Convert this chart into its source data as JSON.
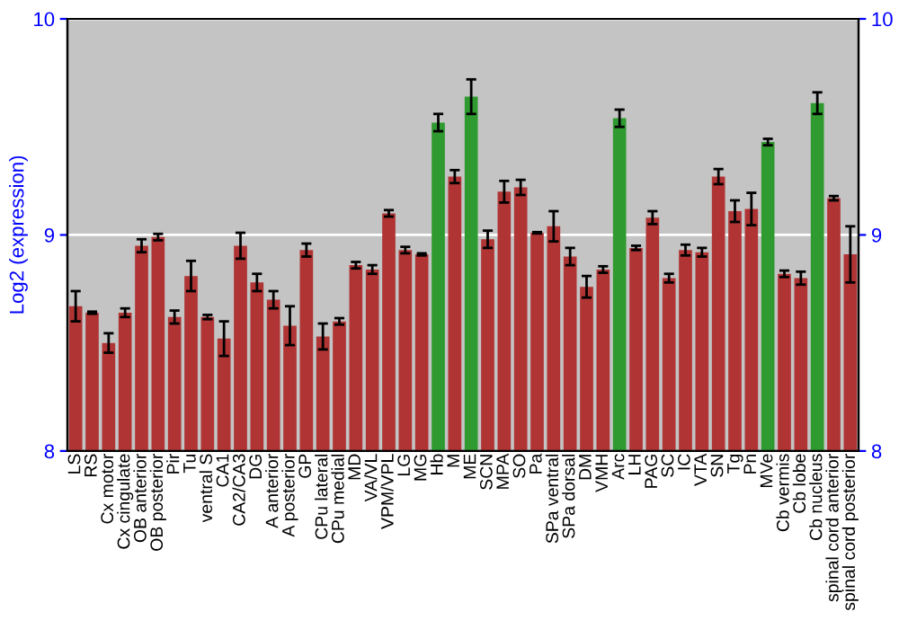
{
  "chart_data": {
    "type": "bar",
    "ylabel": "Log2 (expression)",
    "categories": [
      "LS",
      "RS",
      "Cx motor",
      "Cx cingulate",
      "OB anterior",
      "OB posterior",
      "Pir",
      "Tu",
      "ventral S",
      "CA1",
      "CA2/CA3",
      "DG",
      "A anterior",
      "A posterior",
      "GP",
      "CPu lateral",
      "CPu medial",
      "MD",
      "VA/VL",
      "VPM/VPL",
      "LG",
      "MG",
      "Hb",
      "M",
      "ME",
      "SCN",
      "MPA",
      "SO",
      "Pa",
      "SPa ventral",
      "SPa dorsal",
      "DM",
      "VMH",
      "Arc",
      "LH",
      "PAG",
      "SC",
      "IC",
      "VTA",
      "SN",
      "Tg",
      "Pn",
      "MVe",
      "Cb vermis",
      "Cb lobe",
      "Cb nucleus",
      "spinal cord anterior",
      "spinal cord posterior"
    ],
    "values": [
      8.67,
      8.64,
      8.5,
      8.64,
      8.95,
      8.99,
      8.62,
      8.81,
      8.62,
      8.52,
      8.95,
      8.78,
      8.7,
      8.58,
      8.93,
      8.53,
      8.6,
      8.86,
      8.84,
      9.1,
      8.93,
      8.91,
      9.52,
      9.27,
      9.64,
      8.98,
      9.2,
      9.22,
      9.01,
      9.04,
      8.9,
      8.76,
      8.84,
      9.54,
      8.94,
      9.08,
      8.8,
      8.93,
      8.92,
      9.27,
      9.11,
      9.12,
      9.43,
      8.82,
      8.8,
      9.61,
      9.17,
      8.91
    ],
    "errors": [
      0.07,
      0.005,
      0.045,
      0.02,
      0.03,
      0.015,
      0.03,
      0.07,
      0.01,
      0.08,
      0.06,
      0.04,
      0.04,
      0.09,
      0.03,
      0.06,
      0.015,
      0.015,
      0.02,
      0.015,
      0.015,
      0.005,
      0.04,
      0.03,
      0.08,
      0.04,
      0.05,
      0.035,
      0.003,
      0.07,
      0.04,
      0.05,
      0.015,
      0.04,
      0.01,
      0.03,
      0.02,
      0.025,
      0.02,
      0.035,
      0.05,
      0.075,
      0.015,
      0.015,
      0.03,
      0.05,
      0.01,
      0.13
    ],
    "colors": [
      "#b03434",
      "#b03434",
      "#b03434",
      "#b03434",
      "#b03434",
      "#b03434",
      "#b03434",
      "#b03434",
      "#b03434",
      "#b03434",
      "#b03434",
      "#b03434",
      "#b03434",
      "#b03434",
      "#b03434",
      "#b03434",
      "#b03434",
      "#b03434",
      "#b03434",
      "#b03434",
      "#b03434",
      "#b03434",
      "#2f9a2f",
      "#b03434",
      "#2f9a2f",
      "#b03434",
      "#b03434",
      "#b03434",
      "#b03434",
      "#b03434",
      "#b03434",
      "#b03434",
      "#b03434",
      "#2f9a2f",
      "#b03434",
      "#b03434",
      "#b03434",
      "#b03434",
      "#b03434",
      "#b03434",
      "#b03434",
      "#b03434",
      "#2f9a2f",
      "#b03434",
      "#b03434",
      "#2f9a2f",
      "#b03434",
      "#b03434"
    ],
    "ylim": [
      8,
      10
    ],
    "yticks": [
      8,
      9,
      10
    ],
    "y2lim": [
      8,
      10
    ],
    "y2ticks": [
      8,
      9,
      10
    ],
    "grid": "y"
  }
}
